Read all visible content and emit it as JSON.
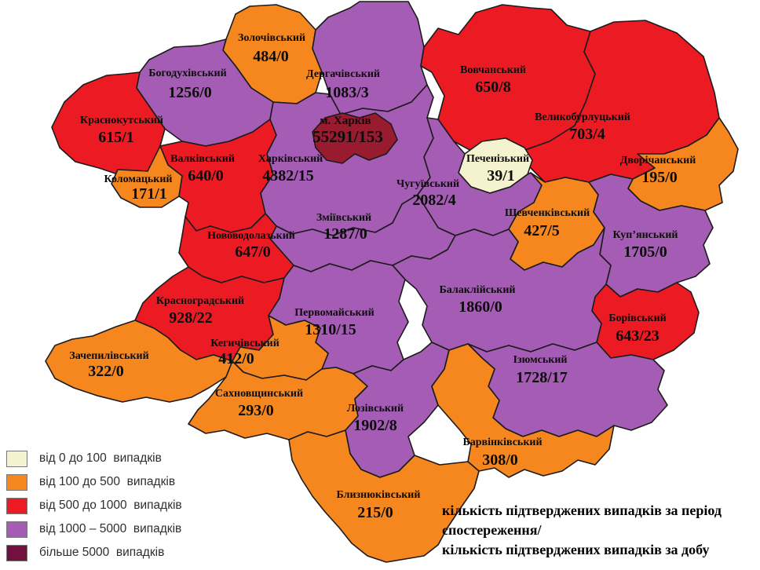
{
  "colors": {
    "border": "#1b1b1b",
    "kharkiv_city_fill": "#981B30"
  },
  "legend": {
    "items": [
      {
        "key": "0-100",
        "color": "#F5F2CF",
        "label": "від 0 до 100  випадків"
      },
      {
        "key": "100-500",
        "color": "#F6871E",
        "label": "від 100 до 500  випадків"
      },
      {
        "key": "500-1000",
        "color": "#EC1B23",
        "label": "від 500 до 1000  випадків"
      },
      {
        "key": "1000-5000",
        "color": "#A55CB4",
        "label": "від 1000 – 5000  випадків"
      },
      {
        "key": "5000+",
        "color": "#72103E",
        "label": "більше 5000  випадків"
      }
    ]
  },
  "footer": {
    "lines": [
      "кількість підтверджених випадків за період",
      "спостереження/",
      "кількість підтверджених випадків за добу"
    ]
  },
  "map": {
    "districts": [
      {
        "id": "zolochivskyi",
        "name": "Золочівський",
        "value": "484/0",
        "category": "100-500"
      },
      {
        "id": "bohodukhivskyi",
        "name": "Богодухівський",
        "value": "1256/0",
        "category": "1000-5000"
      },
      {
        "id": "derhachivskyi",
        "name": "Дергачівський",
        "value": "1083/3",
        "category": "1000-5000"
      },
      {
        "id": "krasnokutskyi",
        "name": "Краснокутський",
        "value": "615/1",
        "category": "500-1000"
      },
      {
        "id": "kolomatskyi",
        "name": "Коломацький",
        "value": "171/1",
        "category": "100-500"
      },
      {
        "id": "valkivskyi",
        "name": "Валківський",
        "value": "640/0",
        "category": "500-1000"
      },
      {
        "id": "kharkivskyi",
        "name": "Харківський",
        "value": "4382/15",
        "category": "1000-5000"
      },
      {
        "id": "vovchanskyi",
        "name": "Вовчанський",
        "value": "650/8",
        "category": "500-1000"
      },
      {
        "id": "velykoburlutskyi",
        "name": "Великобурлуцький",
        "value": "703/4",
        "category": "500-1000"
      },
      {
        "id": "pechenizkyi",
        "name": "Печенізький",
        "value": "39/1",
        "category": "0-100"
      },
      {
        "id": "dvorichanskyi",
        "name": "Дворічанський",
        "value": "195/0",
        "category": "100-500"
      },
      {
        "id": "chuhuivskyi",
        "name": "Чугуївський",
        "value": "2082/4",
        "category": "1000-5000"
      },
      {
        "id": "shevchenkivskyi",
        "name": "Шевченківський",
        "value": "427/5",
        "category": "100-500"
      },
      {
        "id": "kupianskyi",
        "name": "Куп’янський",
        "value": "1705/0",
        "category": "1000-5000"
      },
      {
        "id": "borivskyi",
        "name": "Борівський",
        "value": "643/23",
        "category": "500-1000"
      },
      {
        "id": "zmiivskyi",
        "name": "Зміївський",
        "value": "1287/0",
        "category": "1000-5000"
      },
      {
        "id": "novovodolazkyi",
        "name": "Нововодолазький",
        "value": "647/0",
        "category": "500-1000"
      },
      {
        "id": "balakliiskyi",
        "name": "Балаклійський",
        "value": "1860/0",
        "category": "1000-5000"
      },
      {
        "id": "krasnohradskyi",
        "name": "Красноградський",
        "value": "928/22",
        "category": "500-1000"
      },
      {
        "id": "pervomaiskyi",
        "name": "Первомайський",
        "value": "1310/15",
        "category": "1000-5000"
      },
      {
        "id": "kehychivskyi",
        "name": "Кегичівський",
        "value": "412/0",
        "category": "100-500"
      },
      {
        "id": "zachepylivskyi",
        "name": "Зачепилівський",
        "value": "322/0",
        "category": "100-500"
      },
      {
        "id": "iziumskyi",
        "name": "Ізюмський",
        "value": "1728/17",
        "category": "1000-5000"
      },
      {
        "id": "sakhnovshchynskyi",
        "name": "Сахновщинський",
        "value": "293/0",
        "category": "100-500"
      },
      {
        "id": "lozivskyi",
        "name": "Лозівський",
        "value": "1902/8",
        "category": "1000-5000"
      },
      {
        "id": "barvinkivskyi",
        "name": "Барвінківський",
        "value": "308/0",
        "category": "100-500"
      },
      {
        "id": "blyzniukivskyi",
        "name": "Близнюківський",
        "value": "215/0",
        "category": "100-500"
      },
      {
        "id": "kharkiv_city",
        "name": "м. Харків",
        "value": "55291/153",
        "category": "5000+"
      }
    ]
  }
}
